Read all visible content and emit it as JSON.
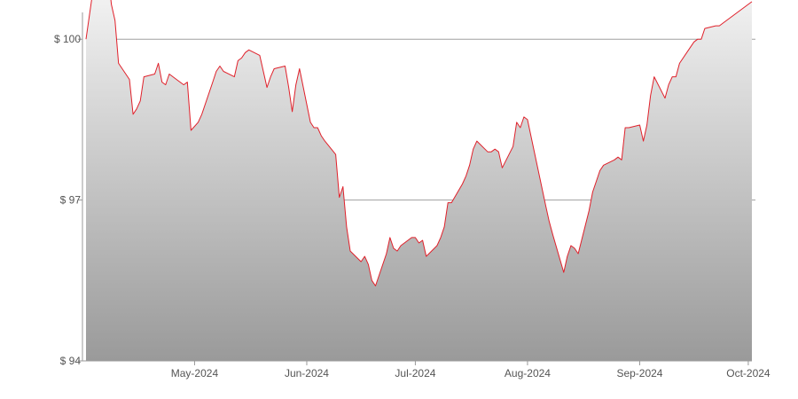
{
  "chart_data": {
    "type": "area",
    "title": "",
    "xlabel": "",
    "ylabel": "",
    "y_tick_labels": [
      "$ 94",
      "$ 97",
      "$ 100"
    ],
    "y_ticks": [
      94,
      97,
      100
    ],
    "ylim": [
      94,
      100.5
    ],
    "x_tick_labels": [
      "May-2024",
      "Jun-2024",
      "Jul-2024",
      "Aug-2024",
      "Sep-2024",
      "Oct-2024"
    ],
    "x_ticks": [
      "2024-05-01",
      "2024-06-01",
      "2024-07-01",
      "2024-08-01",
      "2024-09-01",
      "2024-10-01"
    ],
    "xlim": [
      "2024-04-01",
      "2024-10-02"
    ],
    "grid": "horizontal",
    "legend": "none",
    "colors": {
      "line": "#e0202a",
      "fill_top": "#f8f8f8",
      "fill_bottom": "#9a9a9a",
      "grid": "#a0a0a0",
      "axis": "#999999"
    },
    "series": [
      {
        "x": [
          "2024-04-01",
          "2024-04-03",
          "2024-04-07",
          "2024-04-08",
          "2024-04-09",
          "2024-04-10",
          "2024-04-13",
          "2024-04-14",
          "2024-04-15",
          "2024-04-16",
          "2024-04-17",
          "2024-04-20",
          "2024-04-21",
          "2024-04-22",
          "2024-04-23",
          "2024-04-24",
          "2024-04-27",
          "2024-04-28",
          "2024-04-29",
          "2024-04-30",
          "2024-05-02",
          "2024-05-03",
          "2024-05-06",
          "2024-05-07",
          "2024-05-08",
          "2024-05-09",
          "2024-05-12",
          "2024-05-13",
          "2024-05-14",
          "2024-05-15",
          "2024-05-16",
          "2024-05-19",
          "2024-05-20",
          "2024-05-21",
          "2024-05-22",
          "2024-05-23",
          "2024-05-26",
          "2024-05-27",
          "2024-05-28",
          "2024-05-29",
          "2024-05-30",
          "2024-06-02",
          "2024-06-03",
          "2024-06-04",
          "2024-06-05",
          "2024-06-06",
          "2024-06-09",
          "2024-06-10",
          "2024-06-11",
          "2024-06-12",
          "2024-06-13",
          "2024-06-16",
          "2024-06-17",
          "2024-06-18",
          "2024-06-19",
          "2024-06-20",
          "2024-06-23",
          "2024-06-24",
          "2024-06-25",
          "2024-06-26",
          "2024-06-27",
          "2024-06-30",
          "2024-07-01",
          "2024-07-02",
          "2024-07-03",
          "2024-07-04",
          "2024-07-07",
          "2024-07-08",
          "2024-07-09",
          "2024-07-10",
          "2024-07-11",
          "2024-07-14",
          "2024-07-15",
          "2024-07-16",
          "2024-07-17",
          "2024-07-18",
          "2024-07-21",
          "2024-07-22",
          "2024-07-23",
          "2024-07-24",
          "2024-07-25",
          "2024-07-28",
          "2024-07-29",
          "2024-07-30",
          "2024-07-31",
          "2024-08-01",
          "2024-08-06",
          "2024-08-07",
          "2024-08-08",
          "2024-08-11",
          "2024-08-12",
          "2024-08-13",
          "2024-08-14",
          "2024-08-15",
          "2024-08-18",
          "2024-08-19",
          "2024-08-20",
          "2024-08-21",
          "2024-08-22",
          "2024-08-25",
          "2024-08-26",
          "2024-08-27",
          "2024-08-28",
          "2024-08-29",
          "2024-09-01",
          "2024-09-02",
          "2024-09-03",
          "2024-09-04",
          "2024-09-05",
          "2024-09-08",
          "2024-09-09",
          "2024-09-10",
          "2024-09-11",
          "2024-09-12",
          "2024-09-15",
          "2024-09-16",
          "2024-09-17",
          "2024-09-18",
          "2024-09-19",
          "2024-09-22",
          "2024-09-23",
          "2024-09-24",
          "2024-10-02"
        ],
        "y": [
          100.0,
          100.95,
          101.3,
          100.65,
          100.35,
          99.55,
          99.25,
          98.6,
          98.7,
          98.85,
          99.3,
          99.35,
          99.55,
          99.2,
          99.15,
          99.35,
          99.2,
          99.15,
          99.2,
          98.3,
          98.45,
          98.6,
          99.2,
          99.4,
          99.5,
          99.4,
          99.3,
          99.6,
          99.65,
          99.75,
          99.8,
          99.7,
          99.4,
          99.1,
          99.3,
          99.45,
          99.5,
          99.1,
          98.65,
          99.15,
          99.45,
          98.45,
          98.35,
          98.35,
          98.2,
          98.1,
          97.85,
          97.05,
          97.25,
          96.5,
          96.05,
          95.85,
          95.95,
          95.8,
          95.5,
          95.4,
          96.0,
          96.3,
          96.1,
          96.05,
          96.15,
          96.3,
          96.3,
          96.2,
          96.25,
          95.95,
          96.15,
          96.3,
          96.5,
          96.95,
          96.95,
          97.3,
          97.45,
          97.65,
          97.95,
          98.1,
          97.9,
          97.9,
          97.95,
          97.9,
          97.6,
          98.0,
          98.45,
          98.35,
          98.55,
          98.5,
          96.9,
          96.6,
          96.35,
          95.65,
          95.95,
          96.15,
          96.1,
          96.0,
          96.8,
          97.15,
          97.35,
          97.55,
          97.65,
          97.75,
          97.8,
          97.75,
          98.35,
          98.35,
          98.4,
          98.1,
          98.4,
          98.95,
          99.3,
          98.9,
          99.15,
          99.3,
          99.3,
          99.55,
          99.85,
          99.95,
          100.0,
          100.0,
          100.2,
          100.25,
          100.25,
          100.3,
          100.7
        ]
      }
    ]
  }
}
